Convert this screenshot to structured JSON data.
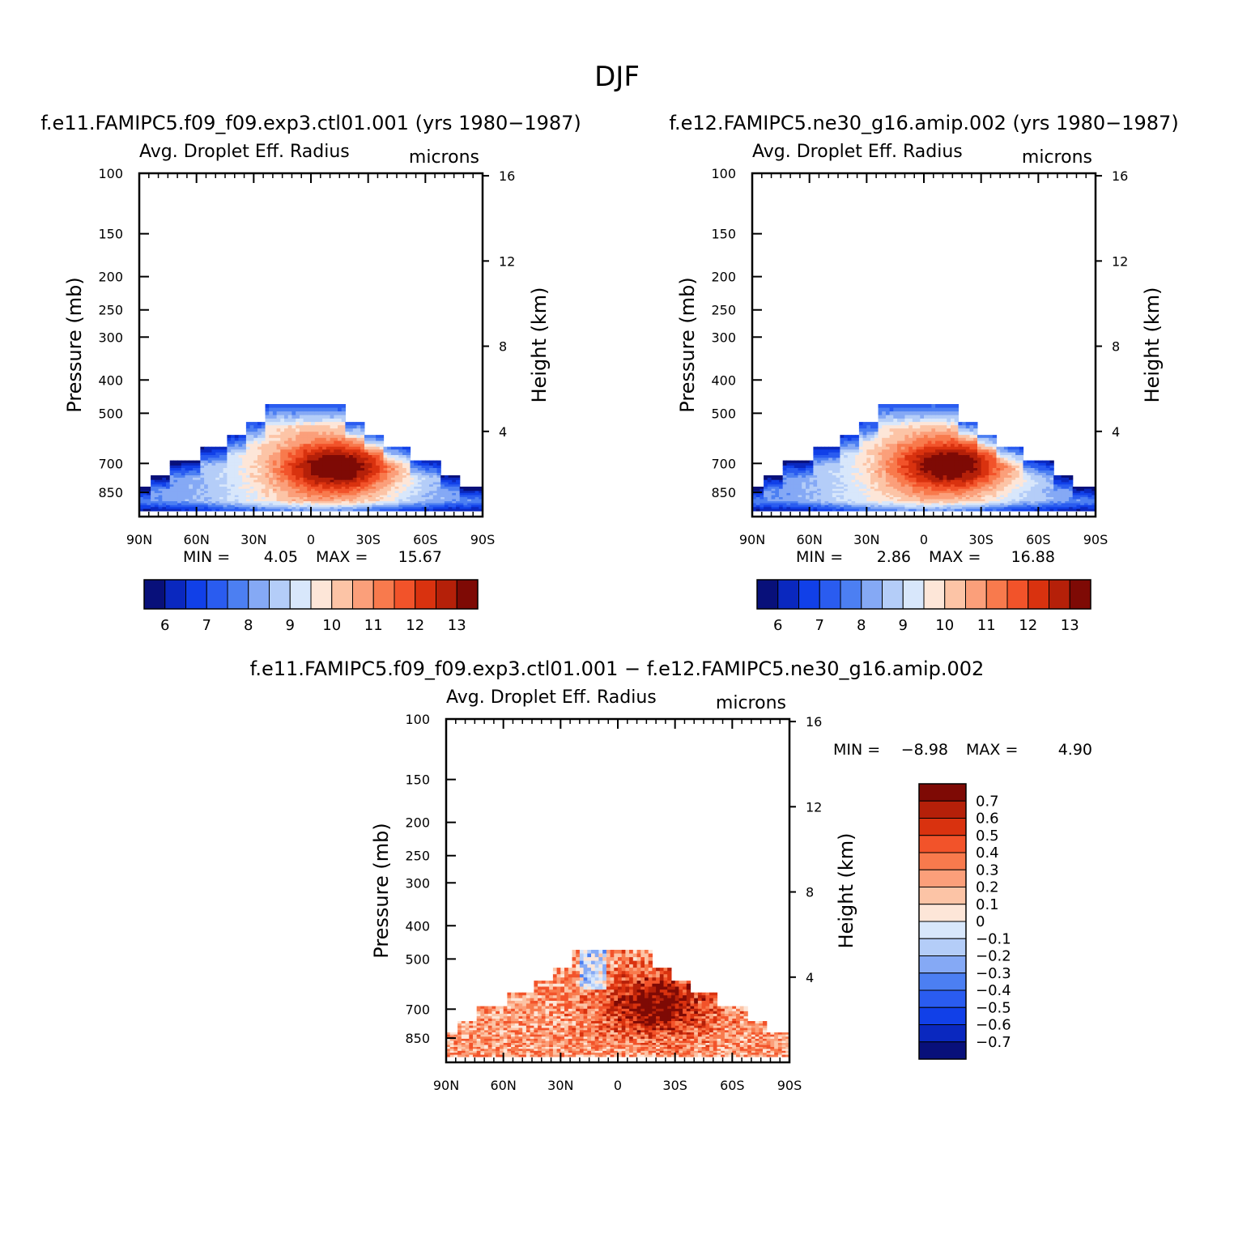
{
  "figure": {
    "suptitle": "DJF"
  },
  "chart_data": [
    {
      "type": "heatmap",
      "title": "f.e11.FAMIPC5.f09_f09.exp3.ctl01.001 (yrs 1980−1987)",
      "subtitle": "Avg. Droplet Eff. Radius",
      "units": "microns",
      "ylabel": "Pressure (mb)",
      "y2label": "Height (km)",
      "x_ticks": [
        "90N",
        "60N",
        "30N",
        "0",
        "30S",
        "60S",
        "90S"
      ],
      "y_ticks": [
        100,
        150,
        200,
        250,
        300,
        400,
        500,
        700,
        850
      ],
      "y2_ticks": [
        4,
        8,
        12,
        16
      ],
      "xlim": [
        90,
        -90
      ],
      "ylim": [
        1000,
        100
      ],
      "y_scale": "log",
      "min_label": "MIN =",
      "min_value": "4.05",
      "max_label": "MAX =",
      "max_value": "15.67",
      "colorbar": {
        "orientation": "horizontal",
        "labels": [
          "6",
          "7",
          "8",
          "9",
          "10",
          "11",
          "12",
          "13"
        ],
        "colors": [
          "#08107a",
          "#0a28bf",
          "#1140e8",
          "#2a5cf0",
          "#4c7ff2",
          "#85a9f5",
          "#b4cdf8",
          "#d8e7fb",
          "#fde6d8",
          "#fcc4a6",
          "#fb9f7a",
          "#f87a4d",
          "#f2532a",
          "#d9320f",
          "#b52009",
          "#7e0a05"
        ]
      },
      "field": {
        "low": 4.05,
        "high": 15.67,
        "core_lat": -15,
        "core_pressure": 720
      }
    },
    {
      "type": "heatmap",
      "title": "f.e12.FAMIPC5.ne30_g16.amip.002 (yrs 1980−1987)",
      "subtitle": "Avg. Droplet Eff. Radius",
      "units": "microns",
      "ylabel": "Pressure (mb)",
      "y2label": "Height (km)",
      "x_ticks": [
        "90N",
        "60N",
        "30N",
        "0",
        "30S",
        "60S",
        "90S"
      ],
      "y_ticks": [
        100,
        150,
        200,
        250,
        300,
        400,
        500,
        700,
        850
      ],
      "y2_ticks": [
        4,
        8,
        12,
        16
      ],
      "xlim": [
        90,
        -90
      ],
      "ylim": [
        1000,
        100
      ],
      "y_scale": "log",
      "min_label": "MIN =",
      "min_value": "2.86",
      "max_label": "MAX =",
      "max_value": "16.88",
      "colorbar": {
        "orientation": "horizontal",
        "labels": [
          "6",
          "7",
          "8",
          "9",
          "10",
          "11",
          "12",
          "13"
        ],
        "colors": [
          "#08107a",
          "#0a28bf",
          "#1140e8",
          "#2a5cf0",
          "#4c7ff2",
          "#85a9f5",
          "#b4cdf8",
          "#d8e7fb",
          "#fde6d8",
          "#fcc4a6",
          "#fb9f7a",
          "#f87a4d",
          "#f2532a",
          "#d9320f",
          "#b52009",
          "#7e0a05"
        ]
      },
      "field": {
        "low": 2.86,
        "high": 16.88,
        "core_lat": -15,
        "core_pressure": 710
      }
    },
    {
      "type": "heatmap",
      "title": "f.e11.FAMIPC5.f09_f09.exp3.ctl01.001 − f.e12.FAMIPC5.ne30_g16.amip.002",
      "subtitle": "Avg. Droplet Eff. Radius",
      "units": "microns",
      "ylabel": "Pressure (mb)",
      "y2label": "Height (km)",
      "x_ticks": [
        "90N",
        "60N",
        "30N",
        "0",
        "30S",
        "60S",
        "90S"
      ],
      "y_ticks": [
        100,
        150,
        200,
        250,
        300,
        400,
        500,
        700,
        850
      ],
      "y2_ticks": [
        4,
        8,
        12,
        16
      ],
      "xlim": [
        90,
        -90
      ],
      "ylim": [
        1000,
        100
      ],
      "y_scale": "log",
      "min_label": "MIN =",
      "min_value": "−8.98",
      "max_label": "MAX =",
      "max_value": "4.90",
      "colorbar": {
        "orientation": "vertical",
        "labels": [
          "0.7",
          "0.6",
          "0.5",
          "0.4",
          "0.3",
          "0.2",
          "0.1",
          "0",
          "−0.1",
          "−0.2",
          "−0.3",
          "−0.4",
          "−0.5",
          "−0.6",
          "−0.7"
        ],
        "colors": [
          "#7e0a05",
          "#b52009",
          "#d9320f",
          "#f2532a",
          "#f87a4d",
          "#fb9f7a",
          "#fcc4a6",
          "#fde6d8",
          "#d8e7fb",
          "#b4cdf8",
          "#85a9f5",
          "#4c7ff2",
          "#2a5cf0",
          "#1140e8",
          "#0a28bf",
          "#08107a"
        ]
      },
      "field": {
        "low": -8.98,
        "high": 4.9,
        "core_lat": -20,
        "core_pressure": 680
      }
    }
  ]
}
